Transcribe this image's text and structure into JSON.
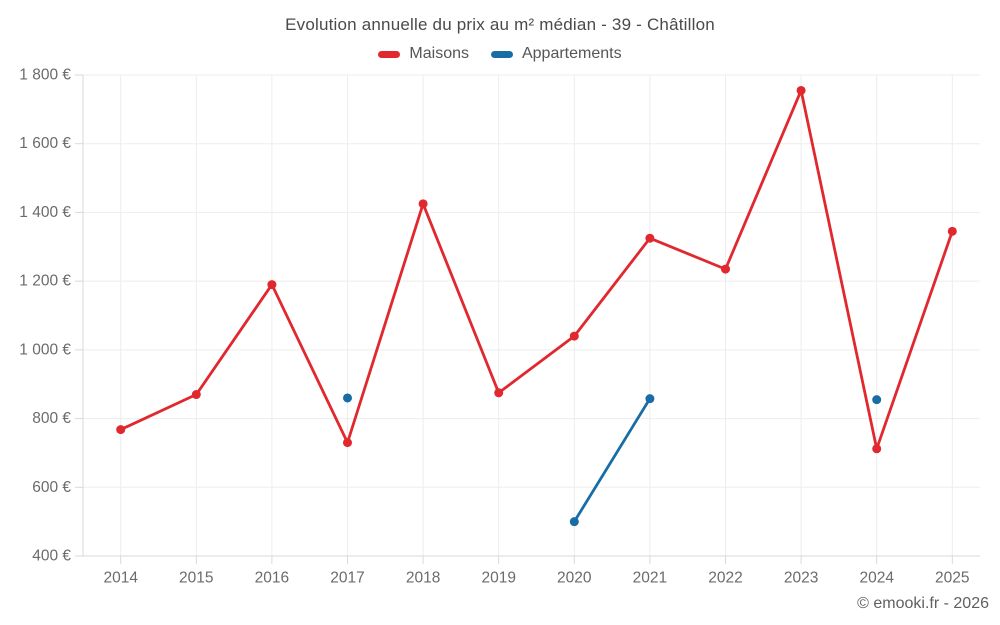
{
  "header": {
    "title": "Evolution annuelle du prix au m² médian - 39 - Châtillon"
  },
  "legend": [
    {
      "label": "Maisons",
      "color": "#e0282e"
    },
    {
      "label": "Appartements",
      "color": "#1a6ca6"
    }
  ],
  "footer": {
    "copyright": "© emooki.fr - 2026"
  },
  "chart_data": {
    "type": "line",
    "title": "Evolution annuelle du prix au m² médian - 39 - Châtillon",
    "categories": [
      "2014",
      "2015",
      "2016",
      "2017",
      "2018",
      "2019",
      "2020",
      "2021",
      "2022",
      "2023",
      "2024",
      "2025"
    ],
    "series": [
      {
        "name": "Maisons",
        "color": "#e0282e",
        "values": [
          768,
          870,
          1190,
          730,
          1425,
          875,
          1040,
          1325,
          1235,
          1755,
          712,
          1345
        ]
      },
      {
        "name": "Appartements",
        "color": "#1a6ca6",
        "values": [
          null,
          null,
          null,
          860,
          null,
          null,
          500,
          858,
          null,
          null,
          855,
          null
        ]
      }
    ],
    "xlabel": "",
    "ylabel": "",
    "ylim": [
      400,
      1800
    ],
    "y_ticks": [
      {
        "value": 400,
        "label": "400 €"
      },
      {
        "value": 600,
        "label": "600 €"
      },
      {
        "value": 800,
        "label": "800 €"
      },
      {
        "value": 1000,
        "label": "1 000 €"
      },
      {
        "value": 1200,
        "label": "1 200 €"
      },
      {
        "value": 1400,
        "label": "1 400 €"
      },
      {
        "value": 1600,
        "label": "1 600 €"
      },
      {
        "value": 1800,
        "label": "1 800 €"
      }
    ],
    "grid": true,
    "legend_position": "top",
    "currency": "€",
    "colors": {
      "grid": "#ededed",
      "axis": "#d9d9d9",
      "tick_label": "#6b6b6b"
    }
  }
}
